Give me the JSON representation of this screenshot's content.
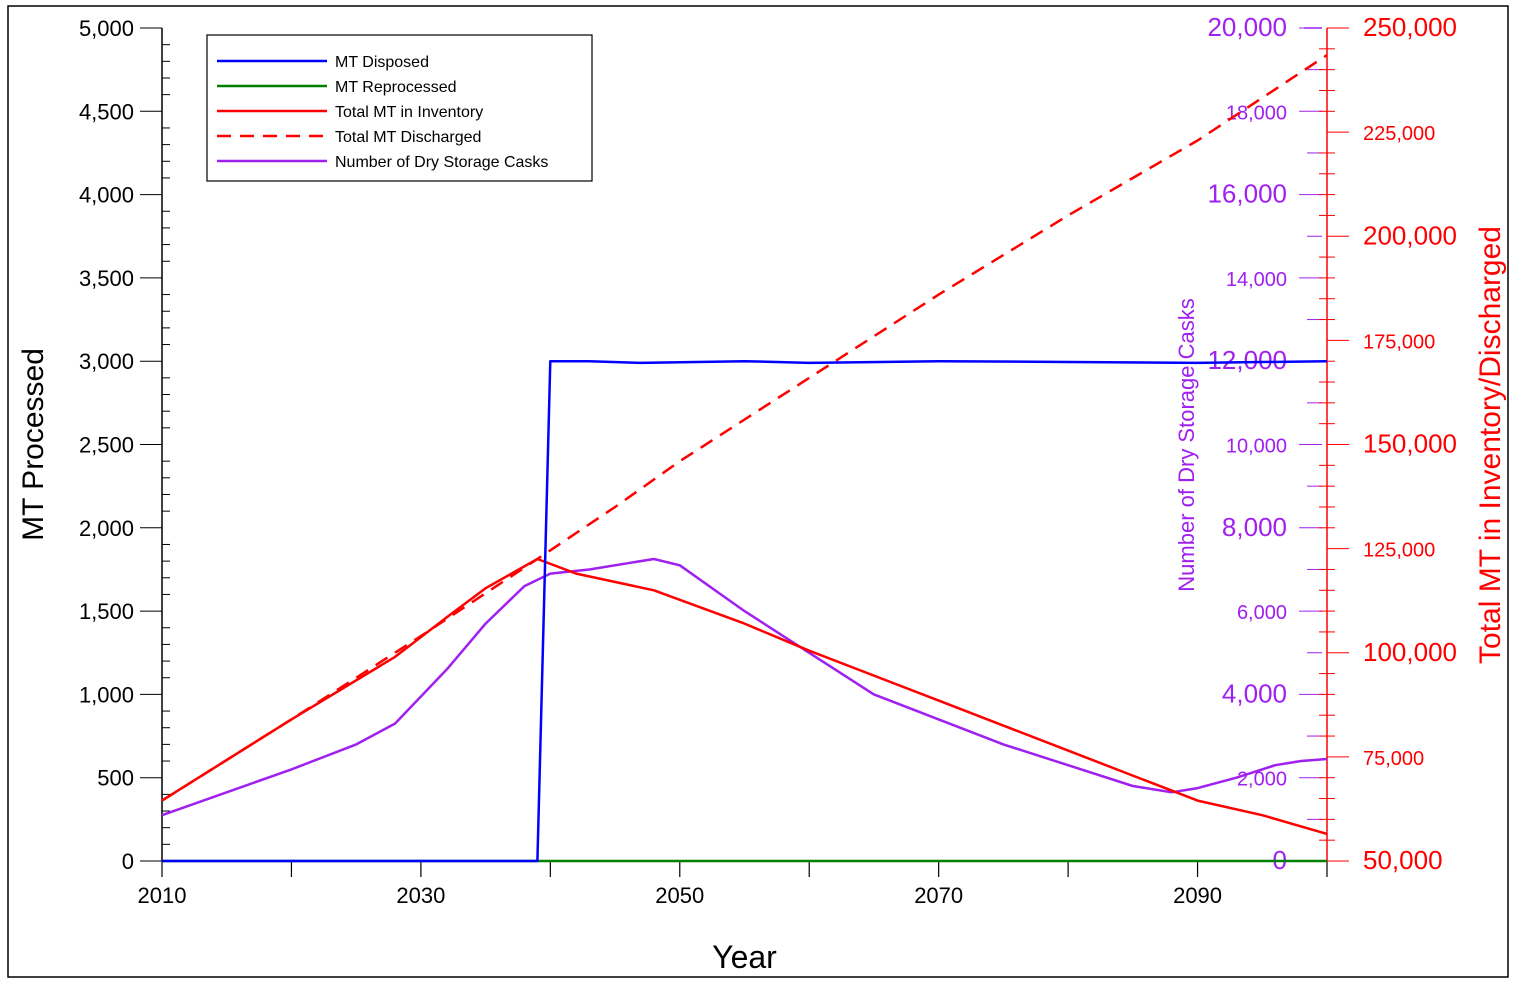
{
  "chart_data": {
    "type": "line",
    "title": "",
    "xlabel": "Year",
    "ylabel_left": "MT Processed",
    "ylabel_right_inner": "Number of Dry Storage Casks",
    "ylabel_right_outer": "Total MT in Inventory/Discharged",
    "xlim": [
      2010,
      2100
    ],
    "x_ticks": [
      2010,
      2030,
      2050,
      2070,
      2090
    ],
    "x_tick_labels": [
      "2010",
      "2030",
      "2050",
      "2070",
      "2090"
    ],
    "y_left": {
      "lim": [
        0,
        5000
      ],
      "ticks": [
        0,
        500,
        1000,
        1500,
        2000,
        2500,
        3000,
        3500,
        4000,
        4500,
        5000
      ],
      "tick_labels": [
        "0",
        "500",
        "1,000",
        "1,500",
        "2,000",
        "2,500",
        "3,000",
        "3,500",
        "4,000",
        "4,500",
        "5,000"
      ]
    },
    "y_right_inner": {
      "lim": [
        0,
        20000
      ],
      "ticks": [
        0,
        2000,
        4000,
        6000,
        8000,
        10000,
        12000,
        14000,
        16000,
        18000,
        20000
      ],
      "tick_labels": [
        "0",
        "2,000",
        "4,000",
        "6,000",
        "8,000",
        "10,000",
        "12,000",
        "14,000",
        "16,000",
        "18,000",
        "20,000"
      ]
    },
    "y_right_outer": {
      "lim": [
        50000,
        250000
      ],
      "ticks": [
        50000,
        75000,
        100000,
        125000,
        150000,
        175000,
        200000,
        225000,
        250000
      ],
      "tick_labels": [
        "50,000",
        "75,000",
        "100,000",
        "125,000",
        "150,000",
        "175,000",
        "200,000",
        "225,000",
        "250,000"
      ]
    },
    "legend_position": "top-left",
    "grid": false,
    "series": [
      {
        "name": "MT Disposed",
        "axis": "left",
        "color": "#0000ff",
        "dash": "solid",
        "x": [
          2010,
          2039,
          2040,
          2043,
          2047,
          2055,
          2060,
          2070,
          2080,
          2090,
          2100
        ],
        "y": [
          0,
          0,
          3000,
          3000,
          2990,
          3000,
          2990,
          3000,
          2995,
          2990,
          3000
        ]
      },
      {
        "name": "MT Reprocessed",
        "axis": "left",
        "color": "#008000",
        "dash": "solid",
        "x": [
          2010,
          2100
        ],
        "y": [
          0,
          0
        ]
      },
      {
        "name": "Total MT in Inventory",
        "axis": "right_outer",
        "color": "#ff0000",
        "dash": "solid",
        "x": [
          2010,
          2020,
          2028,
          2032,
          2035,
          2039,
          2042,
          2048,
          2055,
          2060,
          2070,
          2080,
          2090,
          2095,
          2100
        ],
        "y": [
          64500,
          84000,
          99000,
          108500,
          115500,
          122500,
          119000,
          115000,
          107000,
          100500,
          88500,
          76500,
          64500,
          61000,
          56500
        ]
      },
      {
        "name": "Total MT Discharged",
        "axis": "right_outer",
        "color": "#ff0000",
        "dash": "dashed",
        "x": [
          2010,
          2020,
          2030,
          2039,
          2045,
          2050,
          2060,
          2070,
          2080,
          2090,
          2100
        ],
        "y": [
          64500,
          84000,
          104000,
          122500,
          135000,
          146000,
          166000,
          186000,
          205000,
          223000,
          243500
        ]
      },
      {
        "name": "Number of Dry Storage Casks",
        "axis": "right_inner",
        "color": "#a020f0",
        "dash": "solid",
        "x": [
          2010,
          2020,
          2025,
          2028,
          2032,
          2035,
          2038,
          2040,
          2043,
          2046,
          2048,
          2050,
          2055,
          2060,
          2065,
          2070,
          2075,
          2080,
          2085,
          2088,
          2090,
          2093,
          2096,
          2098,
          2100
        ],
        "y": [
          1100,
          2200,
          2800,
          3300,
          4600,
          5700,
          6600,
          6900,
          7000,
          7150,
          7250,
          7100,
          6000,
          5000,
          4000,
          3400,
          2800,
          2300,
          1800,
          1650,
          1750,
          2000,
          2300,
          2400,
          2450
        ]
      }
    ]
  }
}
